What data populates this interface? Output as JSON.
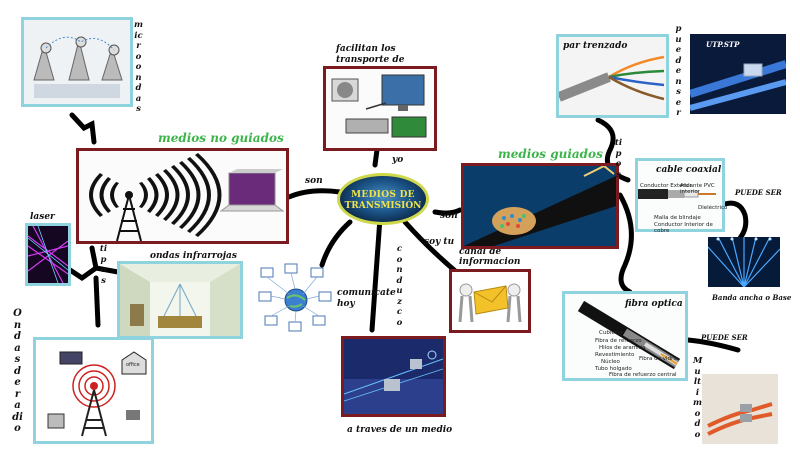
{
  "center": {
    "line1": "MEDIOS DE",
    "line2": "TRANSMISIÓN"
  },
  "top": {
    "caption": "facilitan los transporte de informacion",
    "connector": "yo"
  },
  "left": {
    "section_title": "medios no guiados",
    "connector_son": "son",
    "microwave_vertical": "microondas",
    "laser_label": "laser",
    "tipos_vertical": "tipos",
    "infrared_label": "ondas infrarrojas",
    "radio_vertical": "Ondasderadio",
    "radio_sign": "office"
  },
  "right": {
    "section_title": "medios guiados",
    "connector_son": "son",
    "twisted_label": "par trenzado",
    "puede_ser_vertical": "puedenser",
    "utp_label": "UTP.STP",
    "tipos_vertical": "tipos",
    "coax_label": "cable coaxial",
    "coax_parts": [
      "Conductor Exterior",
      "Aislante PVC interior",
      "Dieléctrico",
      "Malla de blindaje",
      "Conductor Interior de cobre"
    ],
    "puede_ser_label": "PUEDE SER",
    "broadband_label": "Banda ancha o Base",
    "fiber_label": "fibra optica",
    "fiber_parts": [
      "Cubierta",
      "Fibra de refuerzo",
      "Hilos de aramida",
      "Revestimiento",
      "Núcleo",
      "Tubo holgado",
      "Fibra de vidrio",
      "Fibra de refuerzo central"
    ],
    "puede_ser_label_2": "PUEDE SER",
    "multimodo_vertical": "Multimodo"
  },
  "bottom": {
    "channel_connector": "soy tu",
    "channel_label": "canal de informacion",
    "conduct_vertical": "conduzco",
    "communicate_label": "comunicate hoy",
    "medium_label": "a traves de un medio",
    "colors": {
      "blue_border": "#8fd3df",
      "red_border": "#7b1a1f",
      "green_title": "#3bb54a",
      "connector": "#000000"
    }
  }
}
